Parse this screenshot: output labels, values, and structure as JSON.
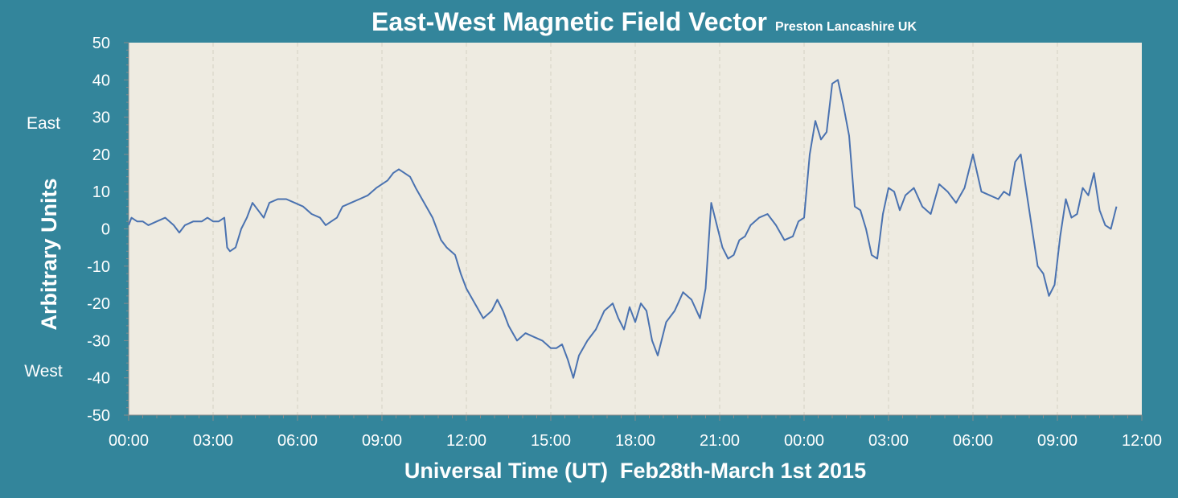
{
  "chart_data": {
    "type": "line",
    "title": "East-West Magnetic Field Vector",
    "subtitle": "Preston Lancashire UK",
    "xlabel": "Universal Time (UT)  Feb28th-March 1st 2015",
    "ylabel": "Arbitrary Units",
    "direction_labels": {
      "top": "East",
      "bottom": "West"
    },
    "ylim": [
      -50,
      50
    ],
    "yticks": [
      50,
      40,
      30,
      20,
      10,
      0,
      -10,
      -20,
      -30,
      -40,
      -50
    ],
    "xlim_hours": [
      0,
      36
    ],
    "xticks": [
      "00:00",
      "03:00",
      "06:00",
      "09:00",
      "12:00",
      "15:00",
      "18:00",
      "21:00",
      "00:00",
      "03:00",
      "06:00",
      "09:00",
      "12:00"
    ],
    "grid": "vertical dashed",
    "colors": {
      "background": "#33859b",
      "plot_area": "#eeebe1",
      "line": "#4a72b0",
      "text": "#ffffff"
    },
    "series": [
      {
        "x_hours": [
          0,
          0.1,
          0.3,
          0.5,
          0.7,
          1.0,
          1.3,
          1.6,
          1.8,
          2.0,
          2.3,
          2.6,
          2.8,
          3.0,
          3.2,
          3.4,
          3.5,
          3.6,
          3.8,
          4.0,
          4.2,
          4.4,
          4.6,
          4.8,
          5.0,
          5.3,
          5.6,
          5.9,
          6.2,
          6.5,
          6.8,
          7.0,
          7.2,
          7.4,
          7.6,
          7.9,
          8.2,
          8.5,
          8.8,
          9.0,
          9.2,
          9.4,
          9.6,
          9.8,
          10.0,
          10.2,
          10.5,
          10.8,
          11.1,
          11.3,
          11.6,
          11.8,
          12.0,
          12.3,
          12.6,
          12.9,
          13.1,
          13.3,
          13.5,
          13.8,
          14.1,
          14.4,
          14.7,
          15.0,
          15.2,
          15.4,
          15.6,
          15.8,
          16.0,
          16.3,
          16.6,
          16.9,
          17.2,
          17.4,
          17.6,
          17.8,
          18.0,
          18.2,
          18.4,
          18.6,
          18.8,
          19.1,
          19.4,
          19.7,
          20.0,
          20.3,
          20.5,
          20.7,
          20.9,
          21.1,
          21.3,
          21.5,
          21.7,
          21.9,
          22.1,
          22.4,
          22.7,
          23.0,
          23.3,
          23.6,
          23.8,
          24.0,
          24.2,
          24.4,
          24.6,
          24.8,
          25.0,
          25.2,
          25.4,
          25.6,
          25.8,
          26.0,
          26.2,
          26.4,
          26.6,
          26.8,
          27.0,
          27.2,
          27.4,
          27.6,
          27.9,
          28.2,
          28.5,
          28.8,
          29.1,
          29.4,
          29.7,
          30.0,
          30.3,
          30.6,
          30.9,
          31.1,
          31.3,
          31.5,
          31.7,
          31.9,
          32.1,
          32.3,
          32.5,
          32.7,
          32.9,
          33.1,
          33.3,
          33.5,
          33.7,
          33.9,
          34.1,
          34.3,
          34.5,
          34.7,
          34.9,
          35.1
        ],
        "values": [
          1,
          3,
          2,
          2,
          1,
          2,
          3,
          1,
          -1,
          1,
          2,
          2,
          3,
          2,
          2,
          3,
          -5,
          -6,
          -5,
          0,
          3,
          7,
          5,
          3,
          7,
          8,
          8,
          7,
          6,
          4,
          3,
          1,
          2,
          3,
          6,
          7,
          8,
          9,
          11,
          12,
          13,
          15,
          16,
          15,
          14,
          11,
          7,
          3,
          -3,
          -5,
          -7,
          -12,
          -16,
          -20,
          -24,
          -22,
          -19,
          -22,
          -26,
          -30,
          -28,
          -29,
          -30,
          -32,
          -32,
          -31,
          -35,
          -40,
          -34,
          -30,
          -27,
          -22,
          -20,
          -24,
          -27,
          -21,
          -25,
          -20,
          -22,
          -30,
          -34,
          -25,
          -22,
          -17,
          -19,
          -24,
          -16,
          7,
          1,
          -5,
          -8,
          -7,
          -3,
          -2,
          1,
          3,
          4,
          1,
          -3,
          -2,
          2,
          3,
          20,
          29,
          24,
          26,
          39,
          40,
          33,
          25,
          6,
          5,
          0,
          -7,
          -8,
          4,
          11,
          10,
          5,
          9,
          11,
          6,
          4,
          12,
          10,
          7,
          11,
          20,
          10,
          9,
          8,
          10,
          9,
          18,
          20,
          10,
          0,
          -10,
          -12,
          -18,
          -15,
          -2,
          8,
          3,
          4,
          11,
          9,
          15,
          5,
          1,
          0,
          6
        ]
      }
    ]
  }
}
